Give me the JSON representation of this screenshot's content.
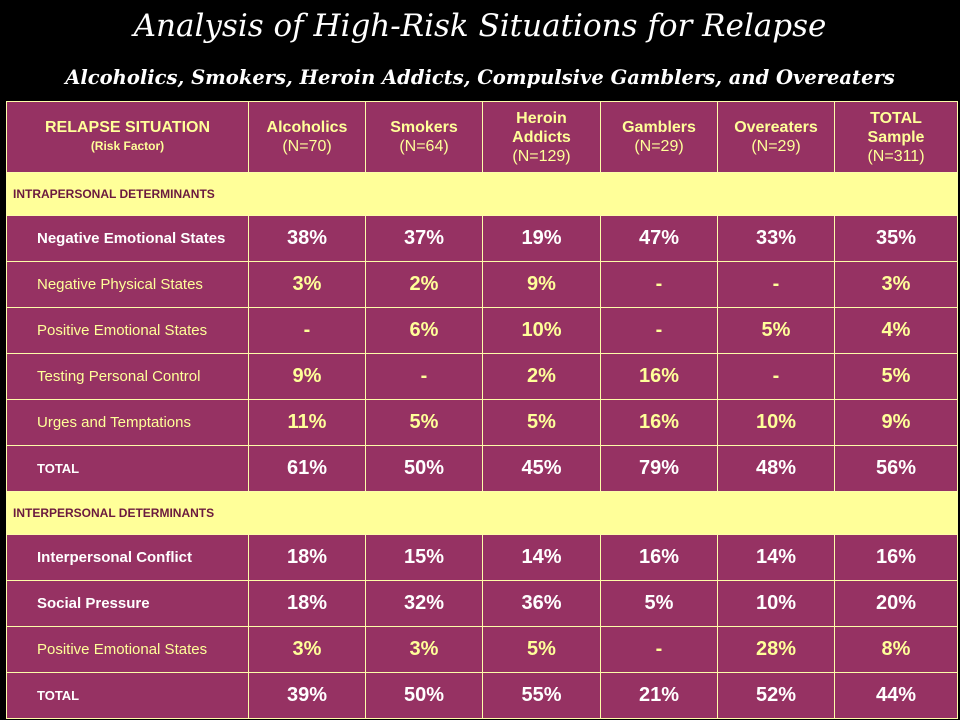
{
  "title": "Analysis of High-Risk Situations for Relapse",
  "subtitle": "Alcoholics, Smokers, Heroin Addicts, Compulsive Gamblers, and Overeaters",
  "header": {
    "situation": "RELAPSE SITUATION",
    "situation_sub": "(Risk Factor)",
    "columns": [
      {
        "name": "Alcoholics",
        "n": "(N=70)"
      },
      {
        "name": "Smokers",
        "n": "(N=64)"
      },
      {
        "name": "Heroin Addicts",
        "n": "(N=129)"
      },
      {
        "name": "Gamblers",
        "n": "(N=29)"
      },
      {
        "name": "Overeaters",
        "n": "(N=29)"
      },
      {
        "name": "TOTAL Sample",
        "n": "(N=311)"
      }
    ]
  },
  "sections": [
    {
      "label": "INTRAPERSONAL DETERMINANTS",
      "rows": [
        {
          "label": "Negative Emotional States",
          "values": [
            "38%",
            "37%",
            "19%",
            "47%",
            "33%",
            "35%"
          ]
        },
        {
          "label": "Negative Physical States",
          "values": [
            "3%",
            "2%",
            "9%",
            "-",
            "-",
            "3%"
          ]
        },
        {
          "label": "Positive Emotional States",
          "values": [
            "-",
            "6%",
            "10%",
            "-",
            "5%",
            "4%"
          ]
        },
        {
          "label": "Testing Personal Control",
          "values": [
            "9%",
            "-",
            "2%",
            "16%",
            "-",
            "5%"
          ]
        },
        {
          "label": "Urges and Temptations",
          "values": [
            "11%",
            "5%",
            "5%",
            "16%",
            "10%",
            "9%"
          ]
        },
        {
          "label": "TOTAL",
          "values": [
            "61%",
            "50%",
            "45%",
            "79%",
            "48%",
            "56%"
          ]
        }
      ]
    },
    {
      "label": "INTERPERSONAL DETERMINANTS",
      "rows": [
        {
          "label": "Interpersonal Conflict",
          "values": [
            "18%",
            "15%",
            "14%",
            "16%",
            "14%",
            "16%"
          ]
        },
        {
          "label": "Social Pressure",
          "values": [
            "18%",
            "32%",
            "36%",
            "5%",
            "10%",
            "20%"
          ]
        },
        {
          "label": "Positive Emotional States",
          "values": [
            "3%",
            "3%",
            "5%",
            "-",
            "28%",
            "8%"
          ]
        },
        {
          "label": "TOTAL",
          "values": [
            "39%",
            "50%",
            "55%",
            "21%",
            "52%",
            "44%"
          ]
        }
      ]
    }
  ]
}
